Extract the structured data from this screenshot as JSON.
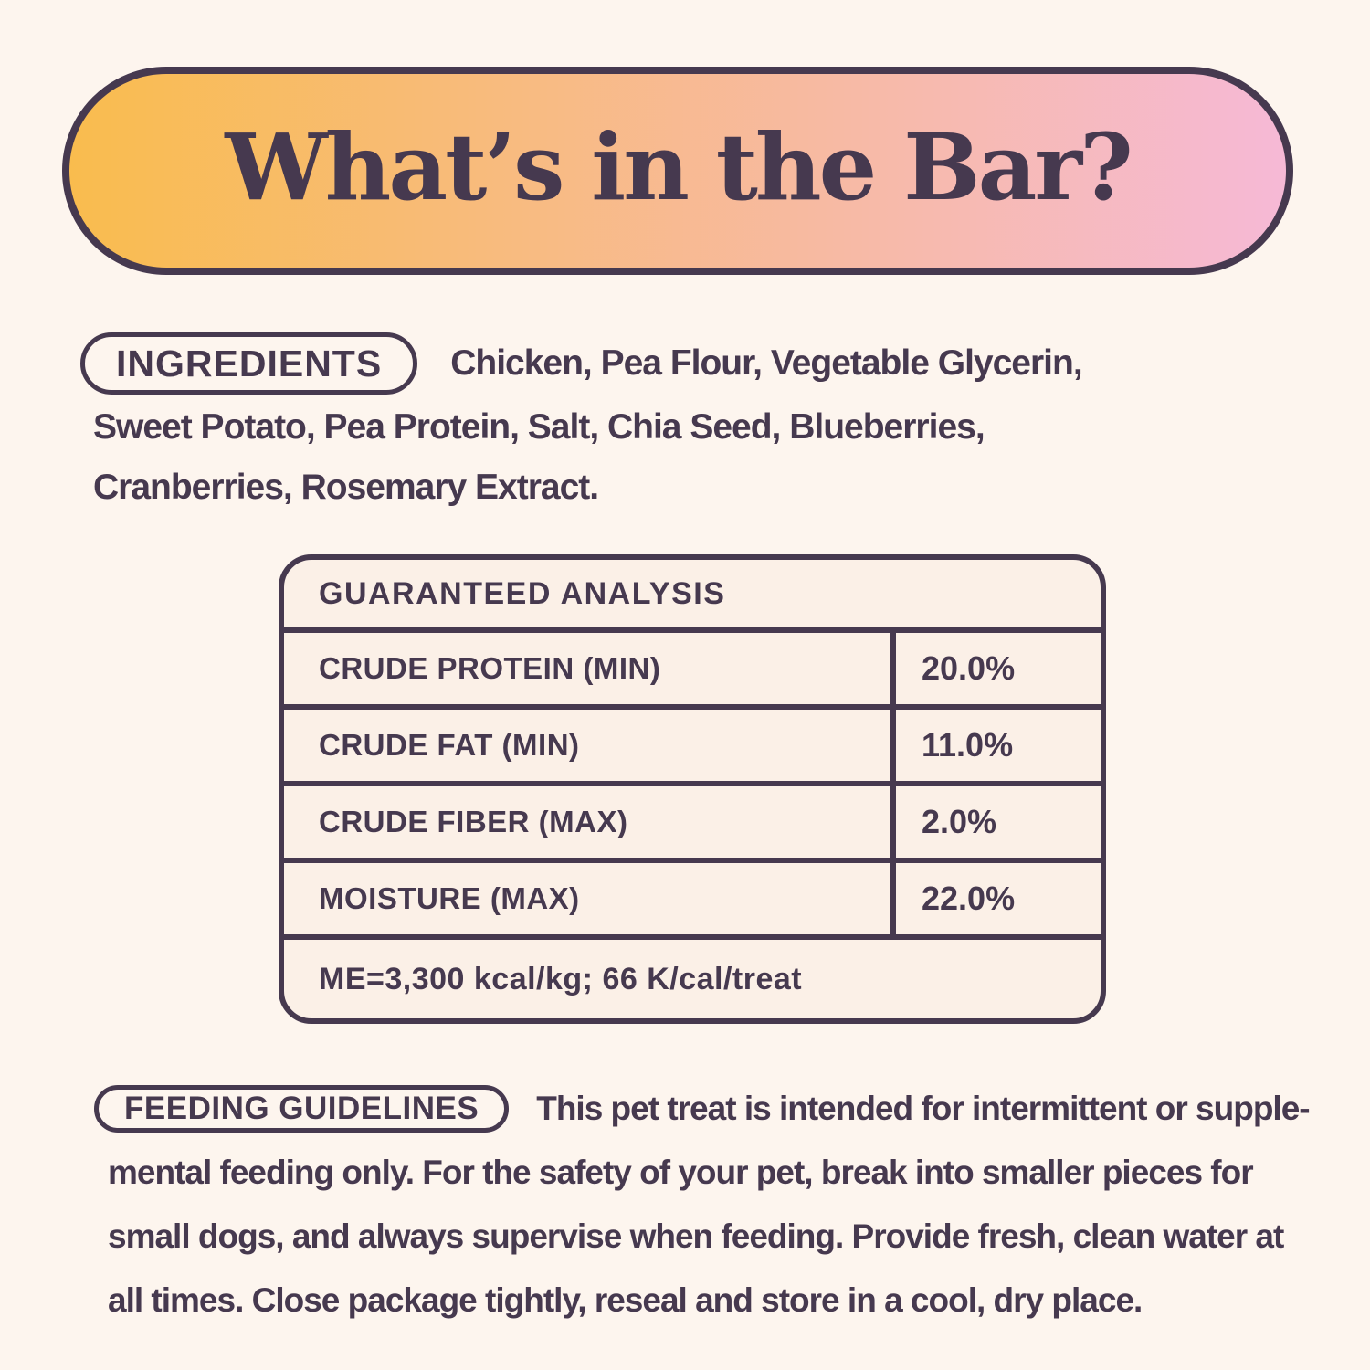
{
  "colors": {
    "ink": "#46394F",
    "page_bg": "#FDF5EE",
    "table_bg": "#FBF0E7",
    "banner_gradient_left": "#F9BC4E",
    "banner_gradient_right": "#F6B9D6"
  },
  "header": {
    "title": "What’s in the Bar?"
  },
  "ingredients": {
    "label": "INGREDIENTS",
    "full_text": "Chicken, Pea Flour, Vegetable Glycerin, Sweet Potato, Pea Protein, Salt, Chia Seed, Blueberries, Cranberries, Rosemary Extract.",
    "line1": "Chicken, Pea Flour, Vegetable Glycerin,",
    "line2": "Sweet Potato, Pea Protein, Salt, Chia Seed, Blueberries,",
    "line3": "Cranberries, Rosemary Extract."
  },
  "analysis": {
    "title": "GUARANTEED ANALYSIS",
    "rows": [
      {
        "label": "CRUDE PROTEIN (MIN)",
        "value": "20.0%"
      },
      {
        "label": "CRUDE FAT (MIN)",
        "value": "11.0%"
      },
      {
        "label": "CRUDE FIBER (MAX)",
        "value": "2.0%"
      },
      {
        "label": "MOISTURE (MAX)",
        "value": "22.0%"
      }
    ],
    "footer": "ME=3,300 kcal/kg; 66 K/cal/treat"
  },
  "feeding": {
    "label": "FEEDING GUIDELINES",
    "full_text": "This pet treat is intended for intermittent or supplemental feeding only. For the safety of your pet, break into smaller pieces for small dogs, and always supervise when feeding. Provide fresh, clean water at all times. Close package tightly, reseal and store in a cool, dry place.",
    "line1": "This pet treat is intended for intermittent or supple-",
    "line2": "mental feeding only. For the safety of your pet, break into smaller pieces for",
    "line3": "small dogs, and always supervise when feeding. Provide fresh, clean water at",
    "line4": "all times. Close package tightly, reseal and store in a cool, dry place."
  }
}
